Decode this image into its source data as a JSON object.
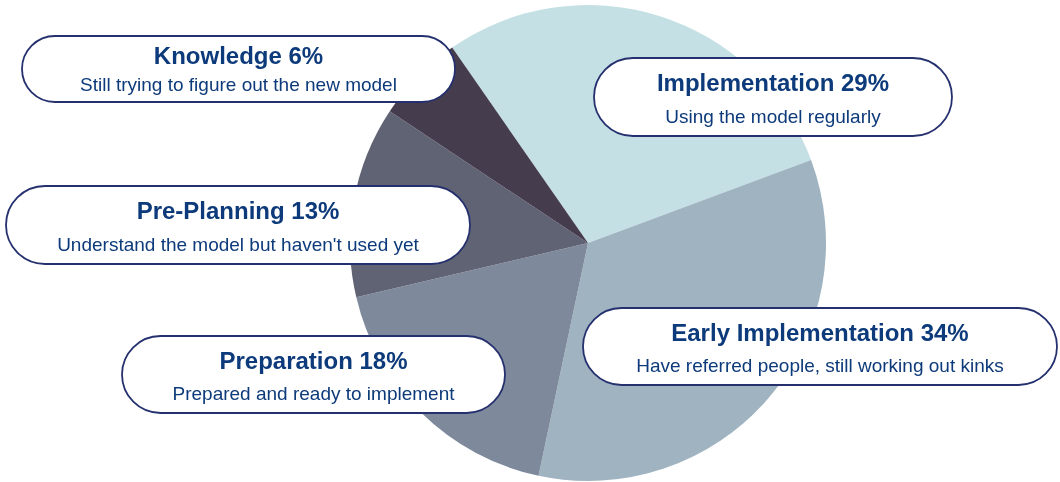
{
  "chart_data": {
    "type": "pie",
    "categories": [
      "Implementation",
      "Early Implementation",
      "Preparation",
      "Pre-Planning",
      "Knowledge"
    ],
    "values": [
      29,
      34,
      18,
      13,
      6
    ],
    "value_labels": [
      "29%",
      "34%",
      "18%",
      "13%",
      "6%"
    ],
    "colors": [
      "#c4e0e5",
      "#9fb3c0",
      "#7e8a9b",
      "#606374",
      "#453d4d"
    ],
    "annotations": [
      "Using the model regularly",
      "Have referred people, still working out kinks",
      "Prepared and ready to implement",
      "Understand the model but haven't used yet",
      "Still trying to figure out the new model"
    ]
  }
}
